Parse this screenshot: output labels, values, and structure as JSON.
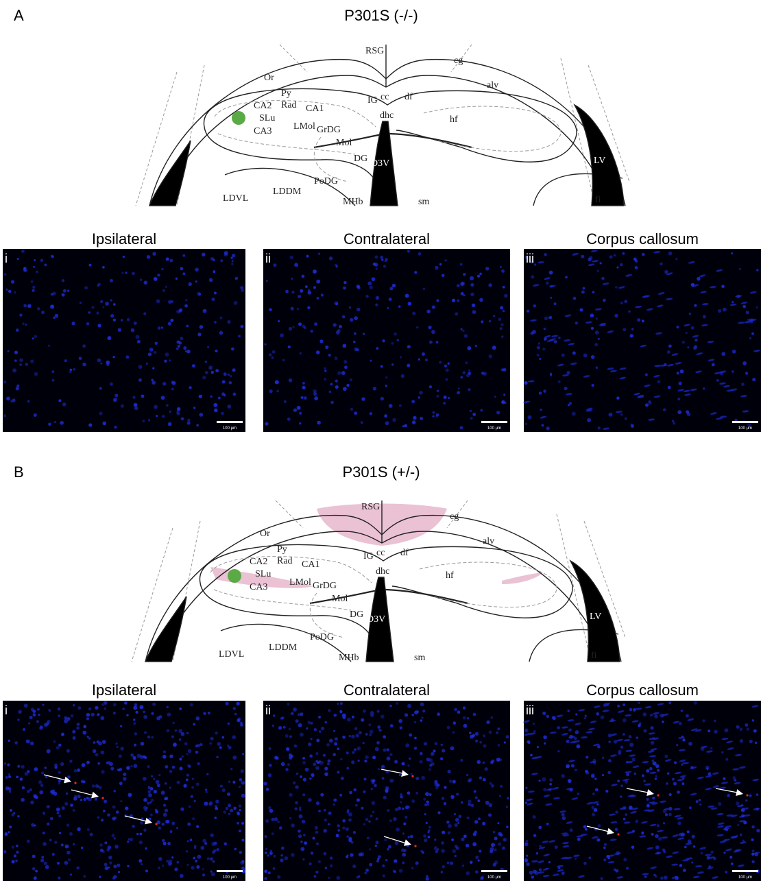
{
  "panels": [
    {
      "label": "A",
      "title": "P301S (-/-)",
      "diagram_labels": [
        "RSG",
        "cg",
        "Or",
        "Py",
        "CA2",
        "Rad",
        "CA1",
        "SLu",
        "CA3",
        "LMol",
        "GrDG",
        "Mol",
        "DG",
        "D3V",
        "PoDG",
        "LDVL",
        "LDDM",
        "MHb",
        "sm",
        "IG",
        "cc",
        "df",
        "dhc",
        "hf",
        "alv",
        "LV",
        "fi"
      ],
      "images": [
        {
          "title": "Ipsilateral",
          "numeral": "i",
          "scale_bar": "100 μm"
        },
        {
          "title": "Contralateral",
          "numeral": "ii",
          "scale_bar": "100 μm"
        },
        {
          "title": "Corpus callosum",
          "numeral": "iii",
          "scale_bar": "100 μm"
        }
      ]
    },
    {
      "label": "B",
      "title": "P301S (+/-)",
      "diagram_labels": [
        "RSG",
        "cg",
        "Or",
        "Py",
        "CA2",
        "Rad",
        "CA1",
        "SLu",
        "CA3",
        "LMol",
        "GrDG",
        "Mol",
        "DG",
        "D3V",
        "PoDG",
        "LDVL",
        "LDDM",
        "MHb",
        "sm",
        "IG",
        "cc",
        "df",
        "dhc",
        "hf",
        "alv",
        "LV",
        "fi"
      ],
      "images": [
        {
          "title": "Ipsilateral",
          "numeral": "i",
          "scale_bar": "100 μm"
        },
        {
          "title": "Contralateral",
          "numeral": "ii",
          "scale_bar": "100 μm"
        },
        {
          "title": "Corpus callosum",
          "numeral": "iii",
          "scale_bar": "100 μm"
        }
      ]
    }
  ]
}
